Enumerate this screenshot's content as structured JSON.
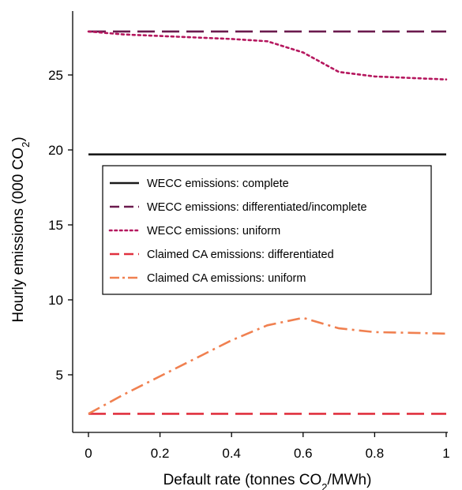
{
  "chart_data": {
    "type": "line",
    "xlabel": "Default rate (tonnes CO",
    "xlabel_sub": "2",
    "xlabel_tail": "/MWh)",
    "ylabel": "Hourly emissions (000 CO",
    "ylabel_sub": "2",
    "ylabel_tail": ")",
    "xlim": [
      0,
      1
    ],
    "ylim": [
      0,
      29
    ],
    "xticks": [
      0,
      0.2,
      0.4,
      0.6,
      0.8,
      1
    ],
    "xtick_labels": [
      "0",
      "0.2",
      "0.4",
      "0.6",
      "0.8",
      "1"
    ],
    "yticks": [
      5,
      10,
      15,
      20,
      25
    ],
    "ytick_labels": [
      "5",
      "10",
      "15",
      "20",
      "25"
    ],
    "grid": false,
    "legend_position": "center-left",
    "series": [
      {
        "name": "WECC emissions: complete",
        "style": "solid",
        "color": "#1a1a1a",
        "x": [
          0,
          1
        ],
        "y": [
          19.7,
          19.7
        ]
      },
      {
        "name": "WECC emissions: differentiated/incomplete",
        "style": "dashed",
        "color": "#6b1a4e",
        "x": [
          0,
          1
        ],
        "y": [
          27.9,
          27.9
        ]
      },
      {
        "name": "WECC emissions: uniform",
        "style": "dotted",
        "color": "#b5175e",
        "x": [
          0,
          0.1,
          0.2,
          0.3,
          0.4,
          0.5,
          0.6,
          0.7,
          0.8,
          0.9,
          1
        ],
        "y": [
          27.9,
          27.7,
          27.6,
          27.5,
          27.4,
          27.25,
          26.5,
          25.2,
          24.9,
          24.8,
          24.7
        ]
      },
      {
        "name": "Claimed CA emissions: differentiated",
        "style": "dashed",
        "color": "#e0303f",
        "x": [
          0,
          1
        ],
        "y": [
          2.4,
          2.4
        ]
      },
      {
        "name": "Claimed CA emissions: uniform",
        "style": "dashdot",
        "color": "#f08050",
        "x": [
          0,
          0.1,
          0.2,
          0.3,
          0.4,
          0.5,
          0.6,
          0.7,
          0.8,
          0.9,
          1
        ],
        "y": [
          2.4,
          3.7,
          4.9,
          6.1,
          7.3,
          8.3,
          8.8,
          8.1,
          7.85,
          7.8,
          7.75
        ]
      }
    ]
  }
}
